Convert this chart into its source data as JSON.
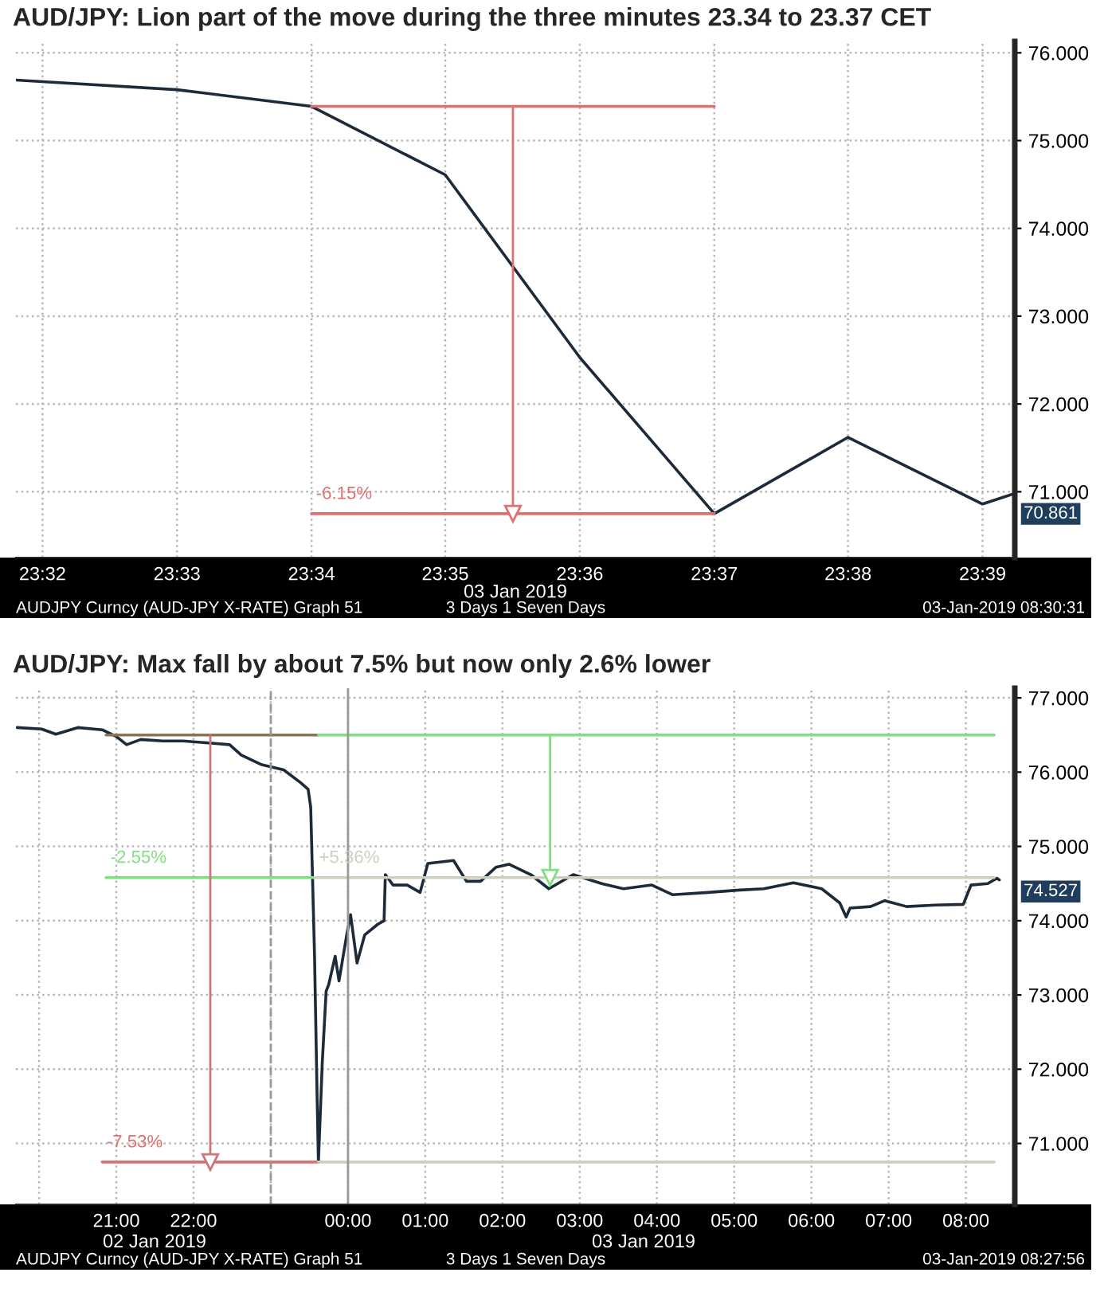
{
  "chart_data": [
    {
      "type": "line",
      "title": "AUD/JPY: Lion part of the move during the three minutes 23.34 to 23.37 CET",
      "xlabel": "03 Jan 2019",
      "series": [
        {
          "color": "#1c2a3a",
          "x": [
            23.53,
            23.55,
            23.5667,
            23.5833,
            23.6,
            23.6167,
            23.6333,
            23.65,
            23.654
          ],
          "values": [
            75.69,
            75.58,
            75.39,
            74.61,
            72.53,
            70.75,
            71.62,
            70.86,
            70.98
          ]
        },
        {
          "color": "#e07070",
          "x": [
            23.5667,
            23.6167
          ],
          "values": [
            75.39,
            75.39
          ]
        },
        {
          "color": "#e07070",
          "x": [
            23.5667,
            23.6167
          ],
          "values": [
            70.75,
            70.75
          ]
        },
        {
          "color": "#e07070",
          "x": [
            23.5917,
            23.5917
          ],
          "values": [
            75.39,
            70.75
          ],
          "marker": "triangle"
        }
      ],
      "xlim": [
        23.53,
        23.654
      ],
      "ylim": [
        70.25,
        76.13
      ],
      "xticks": [
        {
          "value": 23.5333,
          "label": "23:32"
        },
        {
          "value": 23.55,
          "label": "23:33"
        },
        {
          "value": 23.5667,
          "label": "23:34"
        },
        {
          "value": 23.5833,
          "label": "23:35"
        },
        {
          "value": 23.6,
          "label": "23:36"
        },
        {
          "value": 23.6167,
          "label": "23:37"
        },
        {
          "value": 23.6333,
          "label": "23:38"
        },
        {
          "value": 23.65,
          "label": "23:39"
        }
      ],
      "yticks": [
        {
          "value": 71,
          "label": "71.000"
        },
        {
          "value": 72,
          "label": "72.000"
        },
        {
          "value": 73,
          "label": "73.000"
        },
        {
          "value": 74,
          "label": "74.000"
        },
        {
          "value": 75,
          "label": "75.000"
        },
        {
          "value": 76,
          "label": "76.000"
        }
      ],
      "grid": true,
      "legend": false,
      "annotations": [
        {
          "text": "-6.15%",
          "x": 23.5667,
          "y": 70.75
        },
        "70.861",
        "AUDJPY Curncy (AUD-JPY X-RATE) Graph 51",
        "3 Days 1 Seven Days",
        "03-Jan-2019 08:30:31"
      ]
    },
    {
      "type": "line",
      "title": "AUD/JPY: Max fall by about 7.5% but now only 2.6% lower",
      "series": [
        {
          "color": "#1c2a3a",
          "x": [
            "2019-01-02T19:43",
            "2019-01-02T20:02",
            "2019-01-02T20:13",
            "2019-01-02T20:30",
            "2019-01-02T20:49",
            "2019-01-02T21:00",
            "2019-01-02T21:08",
            "2019-01-02T21:19",
            "2019-01-02T21:36",
            "2019-01-02T21:52",
            "2019-01-02T22:14",
            "2019-01-02T22:28",
            "2019-01-02T22:37",
            "2019-01-02T22:53",
            "2019-01-02T23:10",
            "2019-01-02T23:23",
            "2019-01-02T23:29",
            "2019-01-02T23:31",
            "2019-01-02T23:34",
            "2019-01-02T23:36",
            "2019-01-02T23:37",
            "2019-01-02T23:40",
            "2019-01-02T23:43",
            "2019-01-02T23:45",
            "2019-01-02T23:50",
            "2019-01-02T23:53",
            "2019-01-02T23:59",
            "2019-01-03T00:02",
            "2019-01-03T00:07",
            "2019-01-03T00:13",
            "2019-01-03T00:23",
            "2019-01-03T00:28",
            "2019-01-03T00:29",
            "2019-01-03T00:35",
            "2019-01-03T00:46",
            "2019-01-03T00:56",
            "2019-01-03T01:02",
            "2019-01-03T01:22",
            "2019-01-03T01:32",
            "2019-01-03T01:43",
            "2019-01-03T01:55",
            "2019-01-03T02:05",
            "2019-01-03T02:22",
            "2019-01-03T02:36",
            "2019-01-03T02:55",
            "2019-01-03T03:17",
            "2019-01-03T03:34",
            "2019-01-03T03:56",
            "2019-01-03T04:12",
            "2019-01-03T04:40",
            "2019-01-03T05:02",
            "2019-01-03T05:23",
            "2019-01-03T05:46",
            "2019-01-03T06:08",
            "2019-01-03T06:22",
            "2019-01-03T06:27",
            "2019-01-03T06:30",
            "2019-01-03T06:46",
            "2019-01-03T06:57",
            "2019-01-03T07:14",
            "2019-01-03T07:36",
            "2019-01-03T07:58",
            "2019-01-03T08:04",
            "2019-01-03T08:17",
            "2019-01-03T08:24",
            "2019-01-03T08:26"
          ],
          "values": [
            76.6,
            76.58,
            76.51,
            76.6,
            76.57,
            76.48,
            76.37,
            76.44,
            76.42,
            76.42,
            76.39,
            76.37,
            76.23,
            76.1,
            76.03,
            75.86,
            75.77,
            75.53,
            73.52,
            71.61,
            70.75,
            72.09,
            73.05,
            73.14,
            73.52,
            73.19,
            73.81,
            74.08,
            73.43,
            73.81,
            73.95,
            74.0,
            74.62,
            74.48,
            74.48,
            74.38,
            74.77,
            74.81,
            74.53,
            74.53,
            74.72,
            74.76,
            74.62,
            74.43,
            74.62,
            74.5,
            74.43,
            74.48,
            74.35,
            74.38,
            74.41,
            74.43,
            74.51,
            74.43,
            74.24,
            74.05,
            74.17,
            74.19,
            74.27,
            74.19,
            74.21,
            74.22,
            74.48,
            74.5,
            74.57,
            74.55
          ]
        },
        {
          "color": "#8b7355",
          "x": [
            "2019-01-02T20:52",
            "2019-01-02T23:37"
          ],
          "values": [
            76.5,
            76.5
          ]
        },
        {
          "color": "#7ee07e",
          "x": [
            "2019-01-02T23:37",
            "2019-01-03T08:22"
          ],
          "values": [
            76.5,
            76.5
          ]
        },
        {
          "color": "#7ee07e",
          "x": [
            "2019-01-02T20:52",
            "2019-01-02T23:34"
          ],
          "values": [
            74.58,
            74.58
          ]
        },
        {
          "color": "#cfcfbf",
          "x": [
            "2019-01-02T23:34",
            "2019-01-03T08:22"
          ],
          "values": [
            74.58,
            74.58
          ]
        },
        {
          "color": "#e07070",
          "x": [
            "2019-01-02T20:49",
            "2019-01-02T23:37"
          ],
          "values": [
            70.75,
            70.75
          ]
        },
        {
          "color": "#cfcfbf",
          "x": [
            "2019-01-02T23:37",
            "2019-01-03T08:22"
          ],
          "values": [
            70.75,
            70.75
          ]
        },
        {
          "color": "#c87878",
          "x": [
            "2019-01-02T22:13",
            "2019-01-02T22:13"
          ],
          "values": [
            76.5,
            70.75
          ],
          "marker": "triangle"
        },
        {
          "color": "#7ee07e",
          "x": [
            "2019-01-03T02:37",
            "2019-01-03T02:37"
          ],
          "values": [
            76.5,
            74.58
          ],
          "marker": "triangle"
        }
      ],
      "xlim": [
        "2019-01-02T19:42",
        "2019-01-03T08:38"
      ],
      "ylim": [
        70.18,
        77.13
      ],
      "xticks": [
        {
          "value": "2019-01-02T20:00",
          "label": null
        },
        {
          "value": "2019-01-02T21:00",
          "label": "21:00"
        },
        {
          "value": "2019-01-02T22:00",
          "label": "22:00"
        },
        {
          "value": "2019-01-02T23:00",
          "label": null
        },
        {
          "value": "2019-01-03T00:00",
          "label": "00:00"
        },
        {
          "value": "2019-01-03T01:00",
          "label": "01:00"
        },
        {
          "value": "2019-01-03T02:00",
          "label": "02:00"
        },
        {
          "value": "2019-01-03T03:00",
          "label": "03:00"
        },
        {
          "value": "2019-01-03T04:00",
          "label": "04:00"
        },
        {
          "value": "2019-01-03T05:00",
          "label": "05:00"
        },
        {
          "value": "2019-01-03T06:00",
          "label": "06:00"
        },
        {
          "value": "2019-01-03T07:00",
          "label": "07:00"
        },
        {
          "value": "2019-01-03T08:00",
          "label": "08:00"
        }
      ],
      "yticks": [
        {
          "value": 71,
          "label": "71.000"
        },
        {
          "value": 72,
          "label": "72.000"
        },
        {
          "value": 73,
          "label": "73.000"
        },
        {
          "value": 74,
          "label": "74.000"
        },
        {
          "value": 75,
          "label": "75.000"
        },
        {
          "value": 76,
          "label": "76.000"
        },
        {
          "value": 77,
          "label": "77.000"
        }
      ],
      "grid": true,
      "legend": false,
      "ref_lines": [
        {
          "axis": "x",
          "value": "2019-01-02T23:00",
          "color": "#9a9a9a",
          "line_style": "dashed"
        },
        {
          "axis": "x",
          "value": "2019-01-03T00:00",
          "color": "#9a9a9a",
          "line_style": "solid"
        }
      ],
      "annotations": [
        {
          "text": "-7.53%",
          "x": "2019-01-02T20:49",
          "y": 70.75
        },
        {
          "text": "-2.55%",
          "x": "2019-01-02T20:52",
          "y": 74.58
        },
        {
          "text": "+5.36%",
          "x": "2019-01-02T23:34",
          "y": 74.58
        },
        "74.527",
        "02 Jan 2019",
        "03 Jan 2019",
        "AUDJPY Curncy (AUD-JPY X-RATE) Graph 51",
        "3 Days 1 Seven Days",
        "03-Jan-2019 08:27:56"
      ]
    }
  ]
}
